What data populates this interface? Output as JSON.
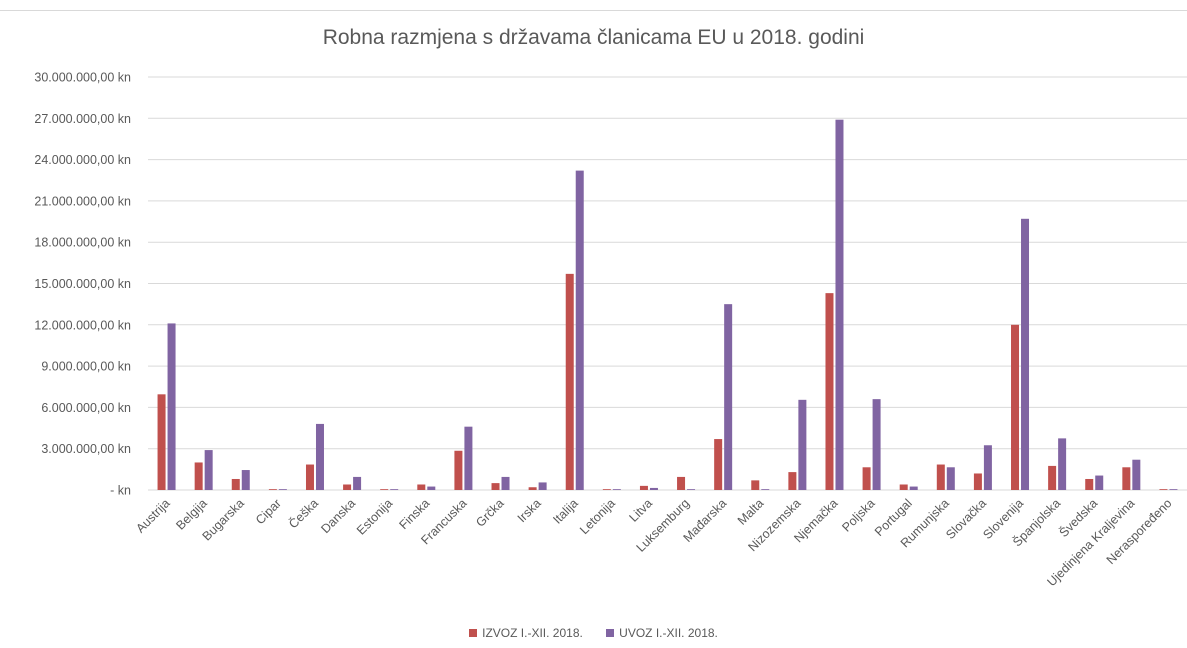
{
  "chart_data": {
    "type": "bar",
    "title": "Robna razmjena s državama članicama EU u 2018. godini",
    "xlabel": "",
    "ylabel": "",
    "ylim": [
      0,
      30000000
    ],
    "yticks": [
      {
        "value": 0,
        "label": "-   kn"
      },
      {
        "value": 3000000,
        "label": "3.000.000,00 kn"
      },
      {
        "value": 6000000,
        "label": "6.000.000,00 kn"
      },
      {
        "value": 9000000,
        "label": "9.000.000,00 kn"
      },
      {
        "value": 12000000,
        "label": "12.000.000,00 kn"
      },
      {
        "value": 15000000,
        "label": "15.000.000,00 kn"
      },
      {
        "value": 18000000,
        "label": "18.000.000,00 kn"
      },
      {
        "value": 21000000,
        "label": "21.000.000,00 kn"
      },
      {
        "value": 24000000,
        "label": "24.000.000,00 kn"
      },
      {
        "value": 27000000,
        "label": "27.000.000,00 kn"
      },
      {
        "value": 30000000,
        "label": "30.000.000,00 kn"
      }
    ],
    "grid": true,
    "legend_position": "bottom",
    "categories": [
      "Austrija",
      "Belgija",
      "Bugarska",
      "Cipar",
      "Češka",
      "Danska",
      "Estonija",
      "Finska",
      "Francuska",
      "Grčka",
      "Irska",
      "Italija",
      "Letonija",
      "Litva",
      "Luksemburg",
      "Mađarska",
      "Malta",
      "Nizozemska",
      "Njemačka",
      "Poljska",
      "Portugal",
      "Rumunjska",
      "Slovačka",
      "Slovenija",
      "Španjolska",
      "Švedska",
      "Ujedinjena Kraljevina",
      "Neraspoređeno"
    ],
    "series": [
      {
        "name": "IZVOZ I.-XII. 2018.",
        "color": "#c0504d",
        "values": [
          6950000,
          2000000,
          800000,
          60000,
          1850000,
          400000,
          60000,
          400000,
          2850000,
          500000,
          200000,
          15700000,
          60000,
          300000,
          950000,
          3700000,
          700000,
          1300000,
          14300000,
          1650000,
          400000,
          1850000,
          1200000,
          12000000,
          1750000,
          800000,
          1650000,
          60000
        ]
      },
      {
        "name": "UVOZ I.-XII. 2018.",
        "color": "#8064a2",
        "values": [
          12100000,
          2900000,
          1450000,
          60000,
          4800000,
          950000,
          60000,
          250000,
          4600000,
          950000,
          550000,
          23200000,
          60000,
          150000,
          60000,
          13500000,
          60000,
          6550000,
          26900000,
          6600000,
          250000,
          1650000,
          3250000,
          19700000,
          3750000,
          1050000,
          2200000,
          60000
        ]
      }
    ]
  }
}
